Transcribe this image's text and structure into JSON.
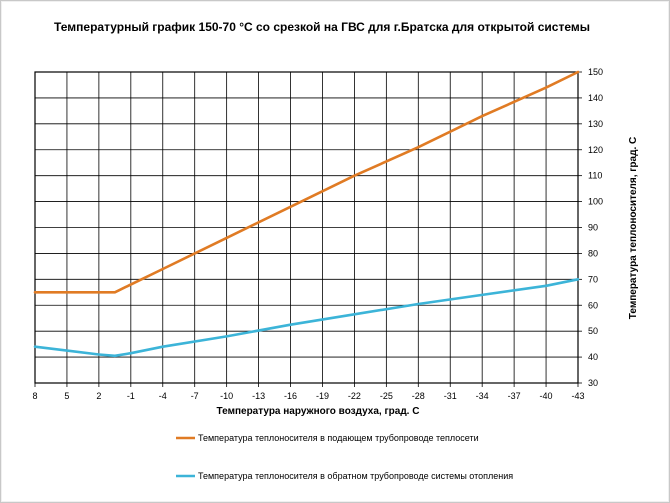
{
  "chart_data": {
    "type": "line",
    "title": "Температурный график 150-70 °С со срезкой на ГВС для г.Братска для открытой системы",
    "xlabel": "Температура наружного воздуха, град. С",
    "ylabel": "Температура теплоносителя,  град. С",
    "x_ticks": [
      "8",
      "5",
      "2",
      "-1",
      "-4",
      "-7",
      "-10",
      "-13",
      "-16",
      "-19",
      "-22",
      "-25",
      "-28",
      "-31",
      "-34",
      "-37",
      "-40",
      "-43"
    ],
    "xlim": [
      8,
      -43
    ],
    "ylim": [
      30,
      150
    ],
    "y_ticks": [
      30,
      40,
      50,
      60,
      70,
      80,
      90,
      100,
      110,
      120,
      130,
      140,
      150
    ],
    "grid": true,
    "y_axis_position": "right",
    "legend_position": "bottom",
    "series": [
      {
        "name": "Температура теплоносителя в подающем трубопроводе теплосети",
        "color": "#e07b24",
        "points": [
          [
            8,
            65
          ],
          [
            5,
            65
          ],
          [
            2,
            65
          ],
          [
            0.5,
            65
          ],
          [
            -0.5,
            67
          ],
          [
            -4,
            74
          ],
          [
            -10,
            86
          ],
          [
            -16,
            98
          ],
          [
            -22,
            110
          ],
          [
            -28,
            121
          ],
          [
            -34,
            133
          ],
          [
            -40,
            144
          ],
          [
            -43,
            150
          ]
        ]
      },
      {
        "name": "Температура теплоносителя в обратном трубопроводе системы отопления",
        "color": "#3cb4d8",
        "points": [
          [
            8,
            44
          ],
          [
            5,
            42.5
          ],
          [
            2,
            41
          ],
          [
            0.5,
            40.5
          ],
          [
            -1,
            41.5
          ],
          [
            -4,
            44
          ],
          [
            -10,
            48
          ],
          [
            -16,
            52.5
          ],
          [
            -22,
            56.5
          ],
          [
            -28,
            60.5
          ],
          [
            -34,
            64
          ],
          [
            -40,
            67.5
          ],
          [
            -43,
            70
          ]
        ]
      }
    ]
  }
}
